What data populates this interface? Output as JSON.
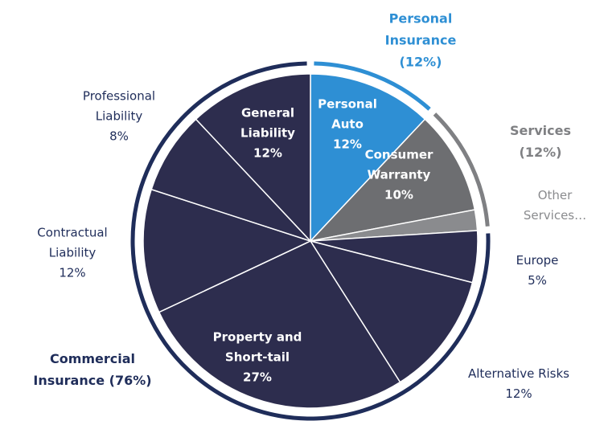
{
  "chart_data": {
    "type": "pie",
    "categories": [
      "Personal Auto",
      "Consumer Warranty",
      "Other Services…",
      "Europe",
      "Alternative Risks",
      "Property and Short-tail",
      "Contractual Liability",
      "Professional Liability",
      "General Liability"
    ],
    "values": [
      12,
      10,
      2,
      5,
      12,
      27,
      12,
      8,
      12
    ],
    "value_labels": [
      "12%",
      "10%",
      null,
      "5%",
      "12%",
      "27%",
      "12%",
      "8%",
      "12%"
    ],
    "colors": [
      "#2e8fd4",
      "#6d6e71",
      "#8a8b8e",
      "#2d2d4e",
      "#2d2d4e",
      "#2d2d4e",
      "#2d2d4e",
      "#2d2d4e",
      "#2d2d4e"
    ],
    "groups": [
      {
        "name": "Personal Insurance",
        "value": 12,
        "value_label": "(12%)",
        "color": "#2e8fd4"
      },
      {
        "name": "Services",
        "value": 12,
        "value_label": "(12%)",
        "color": "#7f8083"
      },
      {
        "name": "Commercial Insurance",
        "value": 76,
        "value_label": "(76%)",
        "color": "#1f2d5a"
      }
    ]
  }
}
